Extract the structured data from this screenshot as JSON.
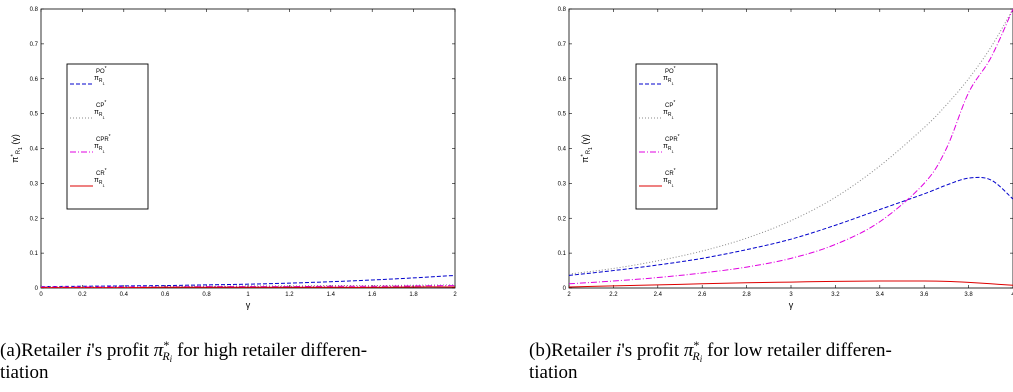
{
  "chart_data": [
    {
      "type": "line",
      "xlabel": "γ",
      "ylabel": "π*R1(γ)",
      "xlim": [
        0,
        2
      ],
      "ylim": [
        0,
        0.8
      ],
      "xticks": [
        "0",
        "0.2",
        "0.4",
        "0.6",
        "0.8",
        "1",
        "1.2",
        "1.4",
        "1.6",
        "1.8",
        "2"
      ],
      "yticks": [
        "0",
        "0.1",
        "0.2",
        "0.3",
        "0.4",
        "0.5",
        "0.6",
        "0.7",
        "0.8"
      ],
      "grid": false,
      "legend_position": "top-left",
      "x": [
        0,
        0.2,
        0.4,
        0.6,
        0.8,
        1.0,
        1.2,
        1.4,
        1.6,
        1.8,
        2.0
      ],
      "series": [
        {
          "name": "π R1 PO*",
          "style": "dashed",
          "color": "#0000cc",
          "values": [
            0.004,
            0.005,
            0.006,
            0.007,
            0.009,
            0.011,
            0.014,
            0.018,
            0.023,
            0.029,
            0.036
          ]
        },
        {
          "name": "π R1 CP*",
          "style": "dotted",
          "color": "#888888",
          "values": [
            0.004,
            0.004,
            0.004,
            0.005,
            0.005,
            0.006,
            0.006,
            0.007,
            0.007,
            0.008,
            0.009
          ]
        },
        {
          "name": "π R1 CPR*",
          "style": "dashdot",
          "color": "#e000e0",
          "values": [
            0.003,
            0.003,
            0.003,
            0.003,
            0.004,
            0.004,
            0.004,
            0.005,
            0.005,
            0.006,
            0.007
          ]
        },
        {
          "name": "π R1 CR*",
          "style": "solid",
          "color": "#dd0000",
          "values": [
            0.001,
            0.001,
            0.001,
            0.002,
            0.002,
            0.002,
            0.002,
            0.002,
            0.002,
            0.003,
            0.003
          ]
        }
      ],
      "caption_parts": [
        "(a)Retailer ",
        "i",
        "'s profit ",
        "π",
        "*",
        "Ri",
        " for high retailer differen-",
        "tiation"
      ]
    },
    {
      "type": "line",
      "xlabel": "γ",
      "ylabel": "π*R1(γ)",
      "xlim": [
        2,
        4
      ],
      "ylim": [
        0,
        0.8
      ],
      "xticks": [
        "2",
        "2.2",
        "2.4",
        "2.6",
        "2.8",
        "3",
        "3.2",
        "3.4",
        "3.6",
        "3.8",
        "4"
      ],
      "yticks": [
        "0",
        "0.1",
        "0.2",
        "0.3",
        "0.4",
        "0.5",
        "0.6",
        "0.7",
        "0.8"
      ],
      "grid": false,
      "legend_position": "top-left",
      "x": [
        2.0,
        2.2,
        2.4,
        2.6,
        2.8,
        3.0,
        3.2,
        3.4,
        3.6,
        3.7,
        3.8,
        3.9,
        4.0
      ],
      "series": [
        {
          "name": "π R1 PO*",
          "style": "dashed",
          "color": "#0000cc",
          "values": [
            0.036,
            0.05,
            0.066,
            0.085,
            0.11,
            0.14,
            0.18,
            0.225,
            0.27,
            0.295,
            0.315,
            0.31,
            0.255
          ]
        },
        {
          "name": "π R1 CP*",
          "style": "dotted",
          "color": "#888888",
          "values": [
            0.04,
            0.056,
            0.078,
            0.106,
            0.143,
            0.193,
            0.26,
            0.35,
            0.46,
            0.525,
            0.6,
            0.69,
            0.8
          ]
        },
        {
          "name": "π R1 CPR*",
          "style": "dashdot",
          "color": "#e000e0",
          "values": [
            0.012,
            0.02,
            0.03,
            0.043,
            0.06,
            0.085,
            0.125,
            0.19,
            0.3,
            0.4,
            0.56,
            0.66,
            0.8
          ]
        },
        {
          "name": "π R1 CR*",
          "style": "solid",
          "color": "#dd0000",
          "values": [
            0.003,
            0.006,
            0.009,
            0.012,
            0.015,
            0.017,
            0.019,
            0.02,
            0.02,
            0.019,
            0.016,
            0.012,
            0.008
          ]
        }
      ],
      "caption_parts": [
        "(b)Retailer ",
        "i",
        "'s profit ",
        "π",
        "*",
        "Ri",
        " for low retailer differen-",
        "tiation"
      ]
    }
  ]
}
